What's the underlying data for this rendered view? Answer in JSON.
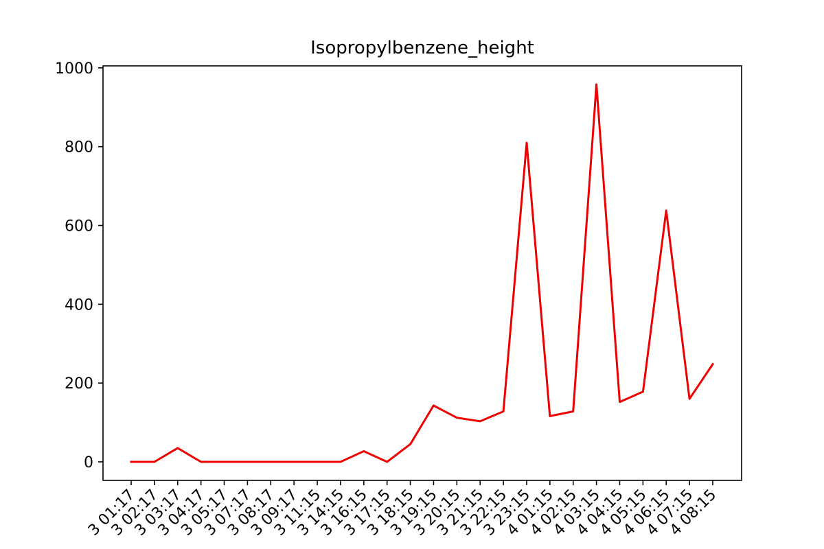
{
  "chart_data": {
    "type": "line",
    "title": "Isopropylbenzene_height",
    "xlabel": "",
    "ylabel": "",
    "x": [
      "3 01:17",
      "3 02:17",
      "3 03:17",
      "3 04:17",
      "3 05:17",
      "3 07:17",
      "3 08:17",
      "3 09:17",
      "3 11:15",
      "3 14:15",
      "3 16:15",
      "3 17:15",
      "3 18:15",
      "3 19:15",
      "3 20:15",
      "3 21:15",
      "3 22:15",
      "3 23:15",
      "4 01:15",
      "4 02:15",
      "4 03:15",
      "4 04:15",
      "4 05:15",
      "4 06:15",
      "4 07:15",
      "4 08:15"
    ],
    "series": [
      {
        "values": [
          0,
          0,
          35,
          0,
          0,
          0,
          0,
          0,
          0,
          0,
          27,
          0,
          45,
          143,
          112,
          103,
          128,
          810,
          116,
          128,
          958,
          152,
          178,
          638,
          160,
          248
        ],
        "color": "#ee0000"
      }
    ],
    "yticks": [
      0,
      200,
      400,
      600,
      800,
      1000
    ],
    "ylim": [
      -47,
      1005
    ],
    "grid": false,
    "x_tick_rotation": "45 degrees"
  }
}
